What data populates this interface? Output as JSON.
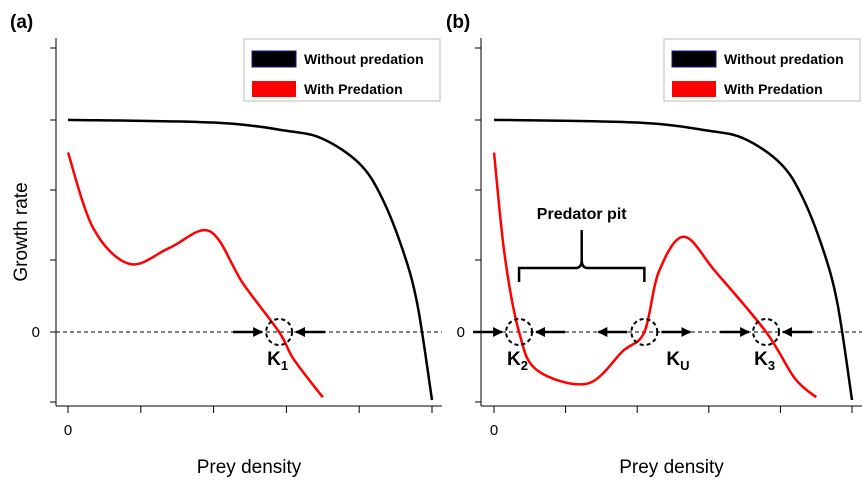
{
  "chart_data": [
    {
      "panel": "(a)",
      "type": "line",
      "xlabel": "Prey density",
      "ylabel": "Growth rate",
      "xtick_label": "0",
      "ytick_label": "0",
      "legend": [
        {
          "label": "Without predation",
          "color": "#000000"
        },
        {
          "label": "With Predation",
          "color": "#ff0000"
        }
      ],
      "legend_position": "top-right",
      "series": [
        {
          "name": "Without predation",
          "color": "#000000",
          "points": [
            [
              0,
              0.78
            ],
            [
              2,
              0.77
            ],
            [
              3,
              0.74
            ],
            [
              3.5,
              0.71
            ],
            [
              4,
              0.62
            ],
            [
              4.3,
              0.5
            ],
            [
              4.6,
              0.3
            ],
            [
              4.8,
              0.1
            ],
            [
              5.0,
              -0.25
            ]
          ]
        },
        {
          "name": "With Predation",
          "color": "#ff0000",
          "points": [
            [
              0,
              0.66
            ],
            [
              0.35,
              0.38
            ],
            [
              0.85,
              0.25
            ],
            [
              1.4,
              0.31
            ],
            [
              1.95,
              0.37
            ],
            [
              2.4,
              0.18
            ],
            [
              2.9,
              0.0
            ],
            [
              3.1,
              -0.1
            ],
            [
              3.5,
              -0.24
            ]
          ]
        }
      ],
      "equilibria": [
        {
          "label": "K",
          "sub": "1",
          "x": 2.9,
          "arrows": "in"
        }
      ]
    },
    {
      "panel": "(b)",
      "type": "line",
      "xlabel": "Prey density",
      "ylabel": "",
      "xtick_label": "0",
      "ytick_label": "0",
      "legend": [
        {
          "label": "Without predation",
          "color": "#000000"
        },
        {
          "label": "With Predation",
          "color": "#ff0000"
        }
      ],
      "legend_position": "top-right",
      "series": [
        {
          "name": "Without predation",
          "color": "#000000",
          "points": [
            [
              0,
              0.78
            ],
            [
              2,
              0.77
            ],
            [
              3,
              0.74
            ],
            [
              3.5,
              0.71
            ],
            [
              4,
              0.62
            ],
            [
              4.3,
              0.5
            ],
            [
              4.6,
              0.3
            ],
            [
              4.8,
              0.1
            ],
            [
              5.0,
              -0.25
            ]
          ]
        },
        {
          "name": "With Predation",
          "color": "#ff0000",
          "points": [
            [
              0,
              0.66
            ],
            [
              0.15,
              0.28
            ],
            [
              0.35,
              0.0
            ],
            [
              0.6,
              -0.14
            ],
            [
              1.3,
              -0.19
            ],
            [
              1.8,
              -0.07
            ],
            [
              2.1,
              0.0
            ],
            [
              2.3,
              0.22
            ],
            [
              2.65,
              0.35
            ],
            [
              3.1,
              0.22
            ],
            [
              3.8,
              0.0
            ],
            [
              4.2,
              -0.17
            ],
            [
              4.5,
              -0.24
            ]
          ]
        }
      ],
      "equilibria": [
        {
          "label": "K",
          "sub": "2",
          "x": 0.35,
          "arrows": "in"
        },
        {
          "label": "K",
          "sub": "U",
          "x": 2.1,
          "arrows": "out"
        },
        {
          "label": "K",
          "sub": "3",
          "x": 3.8,
          "arrows": "in"
        }
      ],
      "annotation": {
        "text": "Predator pit",
        "x_from": 0.35,
        "x_to": 2.1
      }
    }
  ]
}
